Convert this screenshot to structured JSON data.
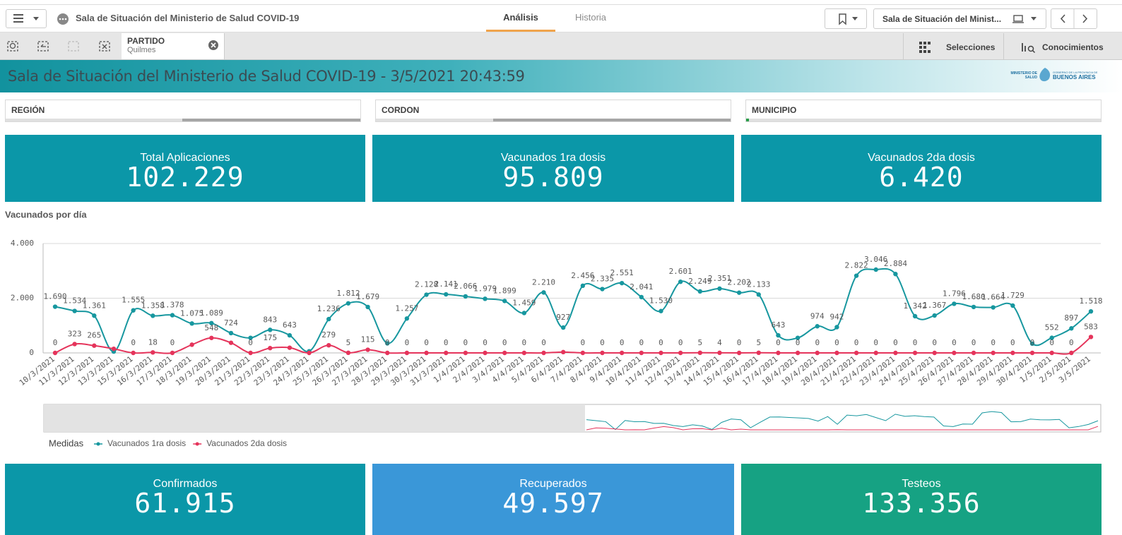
{
  "header": {
    "app_title": "Sala de Situación del Ministerio de Salud COVID-19",
    "tabs": [
      "Análisis",
      "Historia"
    ],
    "sheet_selector": "Sala de Situación del Minist..."
  },
  "toolbar": {
    "selection_field": "PARTIDO",
    "selection_value": "Quilmes",
    "buttons": [
      "Selecciones",
      "Conocimientos"
    ]
  },
  "banner": {
    "title": "Sala de Situación del Ministerio de Salud COVID-19 - 3/5/2021 20:43:59",
    "logo_left": "MINISTERIO DE SALUD",
    "logo_right_small": "GOBIERNO DE LA PROVINCIA DE",
    "logo_right": "BUENOS AIRES"
  },
  "filters": [
    "REGIÓN",
    "CORDON",
    "MUNICIPIO"
  ],
  "kpis_top": [
    {
      "label": "Total Aplicaciones",
      "value": "102.229"
    },
    {
      "label": "Vacunados 1ra dosis",
      "value": "95.809"
    },
    {
      "label": "Vacunados 2da dosis",
      "value": "6.420"
    }
  ],
  "chart_data": {
    "type": "line",
    "title": "Vacunados por día",
    "legend_title": "Medidas",
    "legend": "bottom-left",
    "grid": true,
    "categories": [
      "10/3/2021",
      "11/3/2021",
      "12/3/2021",
      "13/3/2021",
      "15/3/2021",
      "16/3/2021",
      "17/3/2021",
      "18/3/2021",
      "19/3/2021",
      "20/3/2021",
      "21/3/2021",
      "22/3/2021",
      "23/3/2021",
      "24/3/2021",
      "25/3/2021",
      "26/3/2021",
      "27/3/2021",
      "28/3/2021",
      "29/3/2021",
      "30/3/2021",
      "31/3/2021",
      "1/4/2021",
      "2/4/2021",
      "3/4/2021",
      "4/4/2021",
      "5/4/2021",
      "6/4/2021",
      "7/4/2021",
      "8/4/2021",
      "9/4/2021",
      "10/4/2021",
      "11/4/2021",
      "12/4/2021",
      "13/4/2021",
      "14/4/2021",
      "15/4/2021",
      "16/4/2021",
      "17/4/2021",
      "18/4/2021",
      "19/4/2021",
      "20/4/2021",
      "21/4/2021",
      "22/4/2021",
      "23/4/2021",
      "24/4/2021",
      "25/4/2021",
      "26/4/2021",
      "27/4/2021",
      "28/4/2021",
      "29/4/2021",
      "30/4/2021",
      "1/5/2021",
      "2/5/2021",
      "3/5/2021"
    ],
    "series": [
      {
        "name": "Vacunados 1ra dosis",
        "color": "#17979f",
        "values": [
          1690,
          1534,
          1361,
          50,
          1555,
          1358,
          1378,
          1075,
          1089,
          724,
          550,
          843,
          643,
          60,
          1236,
          1812,
          1679,
          350,
          1257,
          2128,
          2141,
          2066,
          1979,
          1899,
          1459,
          2210,
          927,
          2456,
          2335,
          2551,
          2041,
          1530,
          2601,
          2249,
          2351,
          2202,
          2133,
          643,
          550,
          974,
          942,
          2822,
          3046,
          2884,
          1342,
          1367,
          1796,
          1680,
          1664,
          1729,
          340,
          552,
          897,
          1518
        ],
        "value_labels": [
          "1.690",
          "1.534",
          "1.361",
          null,
          "1.555",
          "1.358",
          "1.378",
          "1.075",
          "1.089",
          "724",
          null,
          "843",
          "643",
          null,
          "1.236",
          "1.812",
          "1.679",
          null,
          "1.257",
          "2.128",
          "2.141",
          "2.066",
          "1.979",
          "1.899",
          "1.459",
          "2.210",
          "927",
          "2.456",
          "2.335",
          "2.551",
          "2.041",
          "1.530",
          "2.601",
          "2.249",
          "2.351",
          "2.202",
          "2.133",
          "643",
          null,
          "974",
          "942",
          "2.822",
          "3.046",
          "2.884",
          "1.342",
          "1.367",
          "1.796",
          "1.680",
          "1.664",
          "1.729",
          null,
          "552",
          "897",
          "1.518"
        ]
      },
      {
        "name": "Vacunados 2da dosis",
        "color": "#e5345b",
        "values": [
          0,
          323,
          265,
          150,
          0,
          18,
          0,
          300,
          548,
          370,
          0,
          175,
          190,
          0,
          279,
          5,
          115,
          0,
          0,
          0,
          0,
          0,
          0,
          0,
          0,
          0,
          30,
          0,
          0,
          0,
          0,
          0,
          0,
          5,
          4,
          0,
          5,
          0,
          0,
          0,
          0,
          0,
          0,
          0,
          0,
          0,
          0,
          0,
          0,
          0,
          0,
          0,
          0,
          583
        ],
        "value_labels": [
          "0",
          "323",
          "265",
          null,
          "0",
          "18",
          "0",
          null,
          "548",
          null,
          "0",
          "175",
          null,
          null,
          "279",
          "5",
          "115",
          "0",
          "0",
          "0",
          "0",
          "0",
          "0",
          "0",
          "0",
          "0",
          null,
          "0",
          "0",
          "0",
          "0",
          "0",
          "0",
          "5",
          "4",
          "0",
          "5",
          "0",
          "0",
          "0",
          "0",
          "0",
          "0",
          "0",
          "0",
          "0",
          "0",
          "0",
          "0",
          "0",
          "0",
          "0",
          "0",
          "583"
        ]
      }
    ],
    "ylim": [
      0,
      4000
    ],
    "yticks": [
      0,
      {
        "value": 2000,
        "label": "2.000"
      },
      {
        "value": 4000,
        "label": "4.000"
      }
    ]
  },
  "kpis_bottom": [
    {
      "label": "Confirmados",
      "value": "61.915"
    },
    {
      "label": "Recuperados",
      "value": "49.597"
    },
    {
      "label": "Testeos",
      "value": "133.356"
    }
  ]
}
